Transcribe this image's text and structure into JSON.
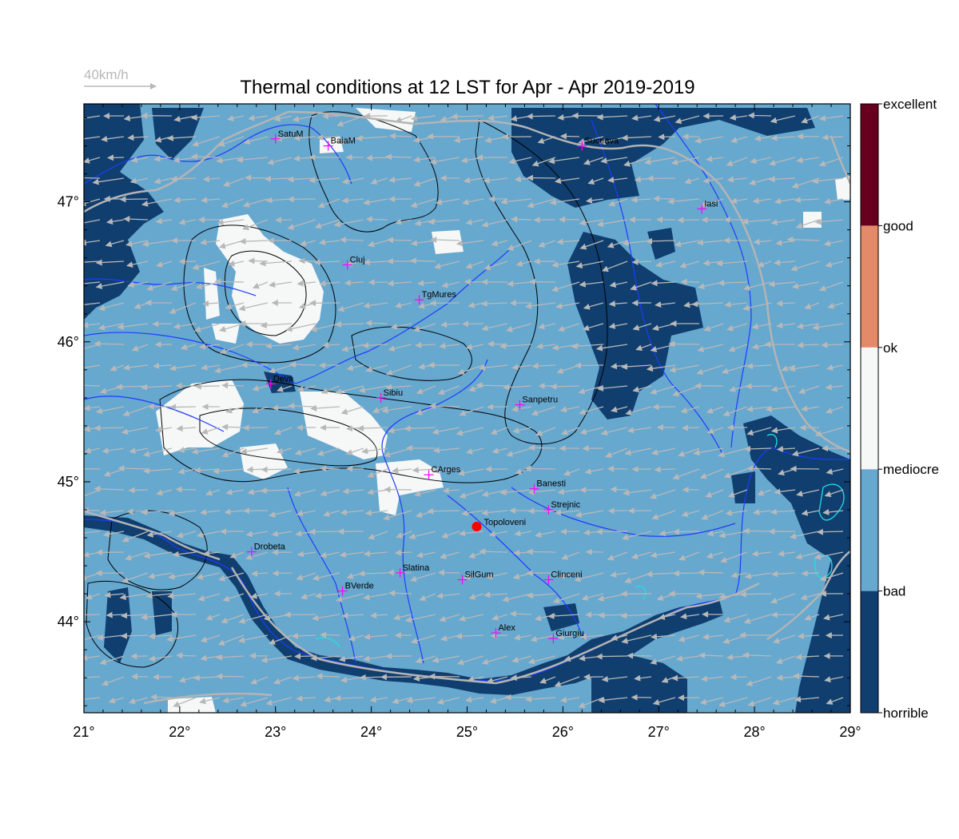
{
  "title": "Thermal conditions at 12 LST for Apr - Apr  2019-2019",
  "wind_scale": {
    "label": "40km/h"
  },
  "axes": {
    "x_range": [
      21,
      29
    ],
    "y_range": [
      43.35,
      47.7
    ],
    "x_ticks": [
      {
        "value": 21,
        "label": "21°"
      },
      {
        "value": 22,
        "label": "22°"
      },
      {
        "value": 23,
        "label": "23°"
      },
      {
        "value": 24,
        "label": "24°"
      },
      {
        "value": 25,
        "label": "25°"
      },
      {
        "value": 26,
        "label": "26°"
      },
      {
        "value": 27,
        "label": "27°"
      },
      {
        "value": 28,
        "label": "28°"
      },
      {
        "value": 29,
        "label": "29°"
      }
    ],
    "y_ticks": [
      {
        "value": 44,
        "label": "44°"
      },
      {
        "value": 45,
        "label": "45°"
      },
      {
        "value": 46,
        "label": "46°"
      },
      {
        "value": 47,
        "label": "47°"
      }
    ]
  },
  "colors": {
    "horrible": "#0f3e6f",
    "bad": "#67a8cf",
    "mediocre": "#f6f7f7",
    "ok": "#e48a69",
    "good": "#67001f",
    "river": "#1e3cff",
    "border": "#b4b4b4",
    "contour": "#000000",
    "lake": "#22e0e0",
    "city_marker": "#ff00ff",
    "home_marker": "#ff0000"
  },
  "legend": {
    "labels": [
      {
        "value": 0,
        "label": "horrible"
      },
      {
        "value": 1,
        "label": "bad"
      },
      {
        "value": 2,
        "label": "mediocre"
      },
      {
        "value": 3,
        "label": "ok"
      },
      {
        "value": 4,
        "label": "good"
      },
      {
        "value": 5,
        "label": "excellent"
      }
    ]
  },
  "cities": [
    {
      "name": "SatuM",
      "lon": 23.0,
      "lat": 47.45
    },
    {
      "name": "BaiaM",
      "lon": 23.55,
      "lat": 47.4
    },
    {
      "name": "Suceava",
      "lon": 26.2,
      "lat": 47.4
    },
    {
      "name": "Iasi",
      "lon": 27.45,
      "lat": 46.95
    },
    {
      "name": "Cluj",
      "lon": 23.75,
      "lat": 46.55
    },
    {
      "name": "TgMures",
      "lon": 24.5,
      "lat": 46.3
    },
    {
      "name": "Deva",
      "lon": 22.95,
      "lat": 45.7
    },
    {
      "name": "Sibiu",
      "lon": 24.1,
      "lat": 45.6
    },
    {
      "name": "Sanpetru",
      "lon": 25.55,
      "lat": 45.55
    },
    {
      "name": "CArges",
      "lon": 24.6,
      "lat": 45.05
    },
    {
      "name": "Banesti",
      "lon": 25.7,
      "lat": 44.95
    },
    {
      "name": "Strejnic",
      "lon": 25.85,
      "lat": 44.8
    },
    {
      "name": "Drobeta",
      "lon": 22.75,
      "lat": 44.5
    },
    {
      "name": "Slatina",
      "lon": 24.3,
      "lat": 44.35
    },
    {
      "name": "SilGum",
      "lon": 24.95,
      "lat": 44.3
    },
    {
      "name": "Clinceni",
      "lon": 25.85,
      "lat": 44.3
    },
    {
      "name": "BVerde",
      "lon": 23.7,
      "lat": 44.22
    },
    {
      "name": "Alex",
      "lon": 25.3,
      "lat": 43.92
    },
    {
      "name": "Giurgiu",
      "lon": 25.9,
      "lat": 43.88
    }
  ],
  "home": {
    "name": "Topoloveni",
    "lon": 25.1,
    "lat": 44.68
  }
}
